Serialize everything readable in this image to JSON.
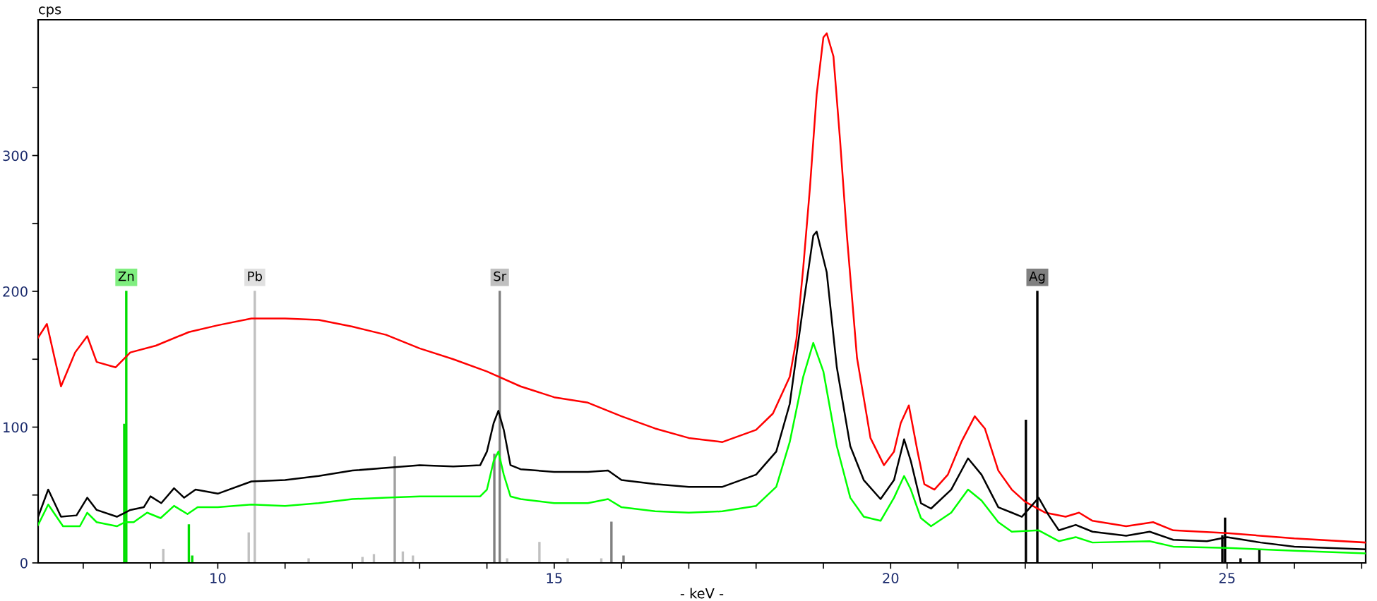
{
  "chart_data": {
    "type": "line",
    "xlabel": "- keV -",
    "ylabel": "cps",
    "xlim": [
      7.33,
      27.06
    ],
    "ylim": [
      0,
      400
    ],
    "xticks": [
      {
        "value": 8,
        "label": null
      },
      {
        "value": 9,
        "label": null
      },
      10,
      {
        "value": 11,
        "label": null
      },
      {
        "value": 12,
        "label": null
      },
      {
        "value": 13,
        "label": null
      },
      {
        "value": 14,
        "label": null
      },
      15,
      {
        "value": 16,
        "label": null
      },
      {
        "value": 17,
        "label": null
      },
      {
        "value": 18,
        "label": null
      },
      {
        "value": 19,
        "label": null
      },
      20,
      {
        "value": 21,
        "label": null
      },
      {
        "value": 22,
        "label": null
      },
      {
        "value": 23,
        "label": null
      },
      {
        "value": 24,
        "label": null
      },
      25,
      {
        "value": 26,
        "label": null
      },
      {
        "value": 27,
        "label": null
      }
    ],
    "yticks": [
      0,
      {
        "value": 50,
        "label": null
      },
      100,
      {
        "value": 150,
        "label": null
      },
      200,
      {
        "value": 250,
        "label": null
      },
      300,
      {
        "value": 350,
        "label": null
      }
    ],
    "grid": false,
    "legend": false,
    "marker": "none",
    "line_style": "solid",
    "series": [
      {
        "color": "#ff0000",
        "x": [
          7.33,
          7.46,
          7.67,
          7.88,
          8.06,
          8.2,
          8.48,
          8.62,
          8.7,
          9.08,
          9.57,
          10,
          10.5,
          11,
          11.5,
          12,
          12.5,
          13,
          13.5,
          14,
          14.5,
          15,
          15.5,
          16,
          16.5,
          17,
          17.5,
          18,
          18.25,
          18.5,
          18.6,
          18.7,
          18.8,
          18.9,
          19.0,
          19.05,
          19.15,
          19.25,
          19.35,
          19.5,
          19.7,
          19.9,
          20.05,
          20.15,
          20.27,
          20.4,
          20.5,
          20.65,
          20.85,
          21.05,
          21.25,
          21.4,
          21.6,
          21.8,
          22.0,
          22.3,
          22.6,
          22.8,
          23.0,
          23.5,
          23.9,
          24.2,
          25,
          26,
          27.06
        ],
        "values": [
          166,
          176,
          130,
          155,
          167,
          148,
          144,
          151,
          155,
          160,
          170,
          175,
          180,
          180,
          179,
          174,
          168,
          158,
          150,
          141,
          130,
          122,
          118,
          108,
          99,
          92,
          89,
          98,
          110,
          137,
          165,
          217,
          276,
          345,
          387,
          390,
          373,
          310,
          241,
          151,
          92,
          72,
          82,
          103,
          116,
          82,
          58,
          54,
          65,
          89,
          108,
          99,
          68,
          54,
          45,
          37,
          34,
          37,
          31,
          27,
          30,
          24,
          22,
          18,
          15
        ]
      },
      {
        "color": "#000000",
        "x": [
          7.33,
          7.48,
          7.67,
          7.9,
          8.06,
          8.2,
          8.5,
          8.62,
          8.7,
          8.9,
          9.0,
          9.16,
          9.35,
          9.5,
          9.67,
          10,
          10.5,
          11,
          11.5,
          12,
          12.5,
          13,
          13.5,
          13.9,
          14.0,
          14.1,
          14.17,
          14.25,
          14.35,
          14.5,
          15,
          15.5,
          15.8,
          16,
          16.5,
          17,
          17.5,
          18,
          18.3,
          18.5,
          18.7,
          18.85,
          18.9,
          19.05,
          19.2,
          19.4,
          19.6,
          19.85,
          20.05,
          20.2,
          20.3,
          20.45,
          20.6,
          20.9,
          21.15,
          21.35,
          21.6,
          21.8,
          21.95,
          22.2,
          22.35,
          22.5,
          22.75,
          23,
          23.5,
          23.85,
          24.2,
          24.7,
          25,
          25.5,
          26,
          27.06
        ],
        "values": [
          34,
          54,
          34,
          35,
          48,
          39,
          34,
          37,
          39,
          41,
          49,
          44,
          55,
          48,
          54,
          51,
          60,
          61,
          64,
          68,
          70,
          72,
          71,
          72,
          82,
          103,
          112,
          98,
          72,
          69,
          67,
          67,
          68,
          61,
          58,
          56,
          56,
          65,
          82,
          117,
          189,
          241,
          244,
          214,
          144,
          86,
          61,
          47,
          61,
          91,
          75,
          44,
          40,
          54,
          77,
          65,
          41,
          37,
          34,
          48,
          35,
          24,
          28,
          23,
          20,
          23,
          17,
          16,
          19,
          15,
          12,
          10
        ]
      },
      {
        "color": "#00ff00",
        "x": [
          7.33,
          7.48,
          7.7,
          7.95,
          8.06,
          8.2,
          8.5,
          8.62,
          8.75,
          8.95,
          9.15,
          9.35,
          9.55,
          9.7,
          10,
          10.5,
          11,
          11.5,
          12,
          12.5,
          13,
          13.5,
          13.9,
          14.0,
          14.1,
          14.17,
          14.25,
          14.35,
          14.5,
          15,
          15.5,
          15.8,
          16,
          16.5,
          17,
          17.5,
          18,
          18.3,
          18.5,
          18.7,
          18.85,
          19.0,
          19.2,
          19.4,
          19.6,
          19.85,
          20.05,
          20.2,
          20.3,
          20.45,
          20.6,
          20.9,
          21.15,
          21.35,
          21.6,
          21.8,
          22.2,
          22.5,
          22.75,
          23,
          23.85,
          24.2,
          25,
          26,
          27.06
        ],
        "values": [
          28,
          43,
          27,
          27,
          37,
          30,
          27,
          30,
          30,
          37,
          33,
          42,
          36,
          41,
          41,
          43,
          42,
          44,
          47,
          48,
          49,
          49,
          49,
          54,
          75,
          82,
          65,
          49,
          47,
          44,
          44,
          47,
          41,
          38,
          37,
          38,
          42,
          56,
          89,
          137,
          162,
          141,
          86,
          48,
          34,
          31,
          48,
          64,
          54,
          33,
          27,
          37,
          54,
          46,
          30,
          23,
          24,
          16,
          19,
          15,
          16,
          12,
          11,
          9,
          7
        ]
      },
      {
        "type": "bar",
        "x": [
          8.61,
          8.64,
          9.19,
          9.57,
          9.62,
          10.46,
          10.55,
          11.35,
          12.15,
          12.32,
          12.63,
          12.75,
          12.9,
          14.11,
          14.19,
          14.3,
          14.78,
          15.2,
          15.7,
          15.85,
          16.03,
          22.01,
          22.18,
          24.93,
          24.97,
          25.2,
          25.48
        ],
        "values": [
          102,
          200,
          10,
          28,
          5,
          22,
          200,
          3,
          4,
          6,
          78,
          8,
          5,
          80,
          200,
          3,
          15,
          3,
          3,
          30,
          5,
          105,
          200,
          20,
          33,
          3,
          10
        ],
        "colors": [
          "#00dd00",
          "#00dd00",
          "#c0c0c0",
          "#00dd00",
          "#00dd00",
          "#c0c0c0",
          "#c0c0c0",
          "#c0c0c0",
          "#c0c0c0",
          "#c0c0c0",
          "#a0a0a0",
          "#c0c0c0",
          "#c0c0c0",
          "#808080",
          "#808080",
          "#c0c0c0",
          "#c0c0c0",
          "#c0c0c0",
          "#c0c0c0",
          "#808080",
          "#808080",
          "#000000",
          "#000000",
          "#000000",
          "#000000",
          "#000000",
          "#000000"
        ]
      }
    ],
    "annotations": [
      {
        "text": "Zn",
        "x": 8.64,
        "y": 200
      },
      {
        "text": "Pb",
        "x": 10.55,
        "y": 200
      },
      {
        "text": "Sr",
        "x": 14.19,
        "y": 200
      },
      {
        "text": "Ag",
        "x": 22.18,
        "y": 200
      }
    ]
  }
}
